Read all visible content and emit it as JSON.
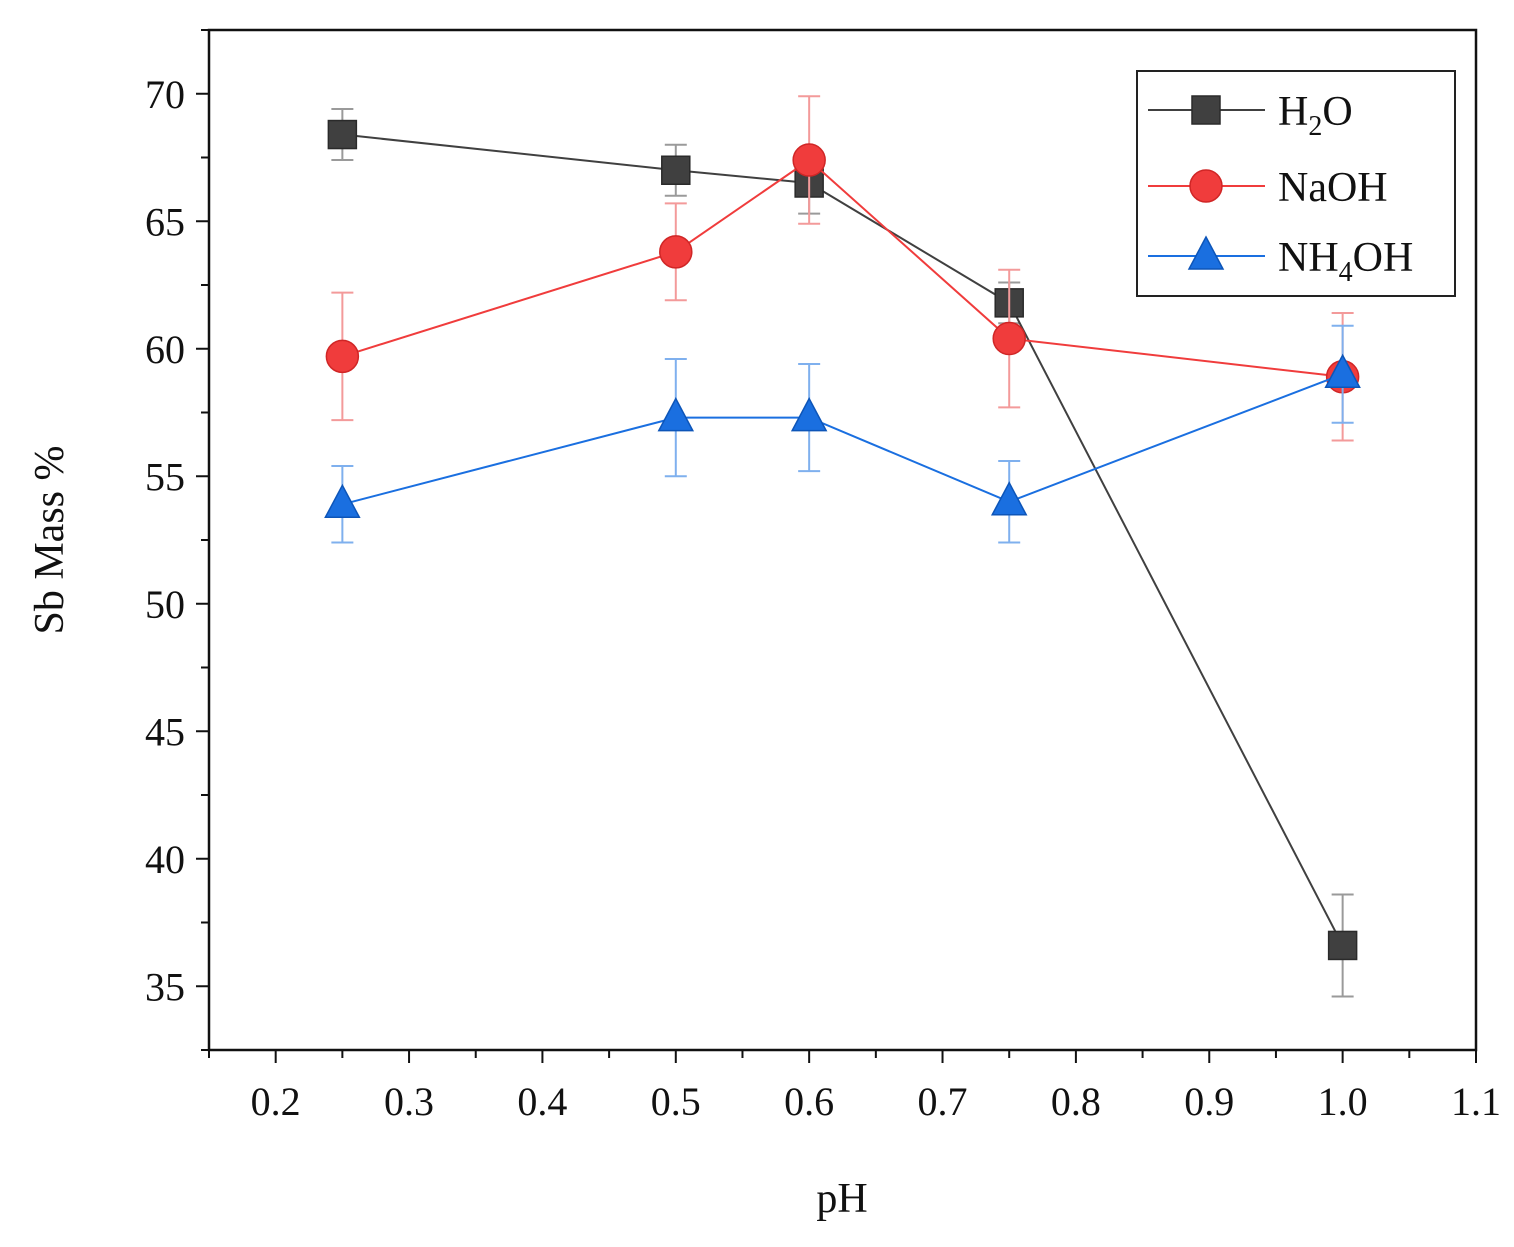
{
  "chart_data": {
    "type": "line",
    "title": "",
    "xlabel": "pH",
    "ylabel": "Sb Mass %",
    "xlim": [
      0.15,
      1.1
    ],
    "ylim": [
      32.5,
      72.5
    ],
    "x_ticks": [
      "0.2",
      "0.3",
      "0.4",
      "0.5",
      "0.6",
      "0.7",
      "0.8",
      "0.9",
      "1.0",
      "1.1"
    ],
    "y_ticks": [
      "35",
      "40",
      "45",
      "50",
      "55",
      "60",
      "65",
      "70"
    ],
    "grid": false,
    "legend_position": "top-right",
    "series": [
      {
        "name": "H2O",
        "legend": {
          "main": "H",
          "sub": "2",
          "rest": "O"
        },
        "marker": "square",
        "color": "#404040",
        "x": [
          0.25,
          0.5,
          0.6,
          0.75,
          1.0
        ],
        "y": [
          68.4,
          67.0,
          66.5,
          61.8,
          36.6
        ],
        "error": [
          1.0,
          1.0,
          1.2,
          0.8,
          2.0
        ]
      },
      {
        "name": "NaOH",
        "legend": {
          "main": "NaOH",
          "sub": "",
          "rest": ""
        },
        "marker": "circle",
        "color": "#f03c3c",
        "x": [
          0.25,
          0.5,
          0.6,
          0.75,
          1.0
        ],
        "y": [
          59.7,
          63.8,
          67.4,
          60.4,
          58.9
        ],
        "error": [
          2.5,
          1.9,
          2.5,
          2.7,
          2.5
        ]
      },
      {
        "name": "NH4OH",
        "legend": {
          "main": "NH",
          "sub": "4",
          "rest": "OH"
        },
        "marker": "triangle",
        "color": "#1a6fe0",
        "x": [
          0.25,
          0.5,
          0.6,
          0.75,
          1.0
        ],
        "y": [
          53.9,
          57.3,
          57.3,
          54.0,
          59.0
        ],
        "error": [
          1.5,
          2.3,
          2.1,
          1.6,
          1.9
        ]
      }
    ]
  }
}
